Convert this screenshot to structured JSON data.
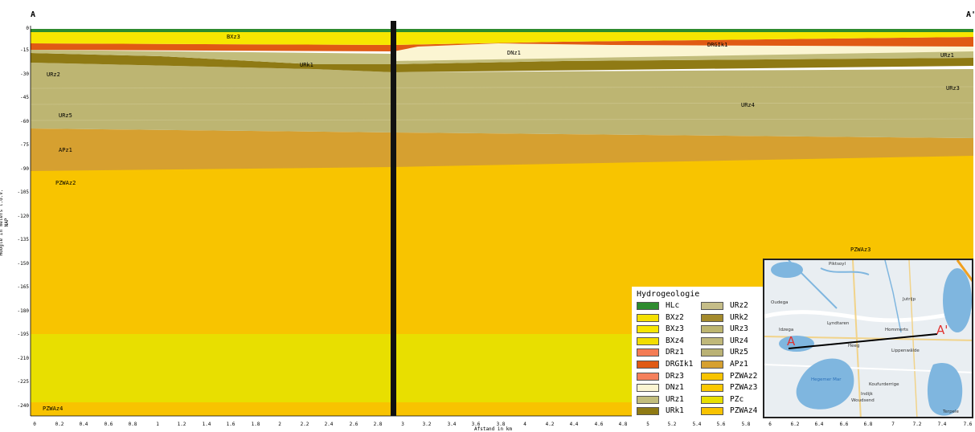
{
  "section": {
    "start_label": "A",
    "end_label": "A'"
  },
  "axes": {
    "y_label": "Hoogte in meters t.o.v. NAP",
    "y_ticks": [
      "0",
      "-15",
      "-30",
      "-45",
      "-60",
      "-75",
      "-90",
      "-105",
      "-120",
      "-135",
      "-150",
      "-165",
      "-180",
      "-195",
      "-210",
      "-225",
      "-240"
    ],
    "x_label": "Afstand in km",
    "x_ticks": [
      "0",
      "0.2",
      "0.4",
      "0.6",
      "0.8",
      "1",
      "1.2",
      "1.4",
      "1.6",
      "1.8",
      "2",
      "2.2",
      "2.4",
      "2.6",
      "2.8",
      "3",
      "3.2",
      "3.4",
      "3.6",
      "3.8",
      "4",
      "4.2",
      "4.4",
      "4.6",
      "4.8",
      "5",
      "5.2",
      "5.4",
      "5.6",
      "5.8",
      "6",
      "6.2",
      "6.4",
      "6.6",
      "6.8",
      "7",
      "7.2",
      "7.4",
      "7.6"
    ]
  },
  "unit_labels": {
    "BXz3": "BXz3",
    "DRGIk1": "DRGIk1",
    "DNz1": "DNz1",
    "URz1": "URz1",
    "URk1": "URk1",
    "URz2": "URz2",
    "URz3": "URz3",
    "URz4": "URz4",
    "URz5": "URz5",
    "APz1": "APz1",
    "PZWAz2": "PZWAz2",
    "PZWAz3": "PZWAz3",
    "PZWAz4": "PZWAz4"
  },
  "legend": {
    "title": "Hydrogeologie",
    "items": [
      {
        "label": "HLc",
        "color": "#2e8b2e"
      },
      {
        "label": "BXz2",
        "color": "#f5e000"
      },
      {
        "label": "BXz3",
        "color": "#f7e600"
      },
      {
        "label": "BXz4",
        "color": "#f2dd00"
      },
      {
        "label": "DRz1",
        "color": "#f47c55"
      },
      {
        "label": "DRGIk1",
        "color": "#e05a14"
      },
      {
        "label": "DRz3",
        "color": "#f5805c"
      },
      {
        "label": "DNz1",
        "color": "#fbf5d2"
      },
      {
        "label": "URz1",
        "color": "#c2bd7c"
      },
      {
        "label": "URk1",
        "color": "#8f7a14"
      },
      {
        "label": "URz2",
        "color": "#c5bd88"
      },
      {
        "label": "URk2",
        "color": "#a48a2c"
      },
      {
        "label": "URz3",
        "color": "#bdb570"
      },
      {
        "label": "URz4",
        "color": "#c0b87a"
      },
      {
        "label": "URz5",
        "color": "#bab275"
      },
      {
        "label": "APz1",
        "color": "#d6a030"
      },
      {
        "label": "PZWAz2",
        "color": "#f8c400"
      },
      {
        "label": "PZWAz3",
        "color": "#fbc800"
      },
      {
        "label": "PZc",
        "color": "#e8df00"
      },
      {
        "label": "PZWAz4",
        "color": "#f8c300"
      }
    ]
  },
  "inset_map": {
    "places": [
      "Piktsoyl",
      "Oudega",
      "Jutrijp",
      "Idzega",
      "Lyndtaren",
      "Hommerts",
      "Heeg",
      "Lippenwâlde",
      "Hegemer Mar",
      "Koufurderrige",
      "Indijk",
      "Woudsend",
      "Terpele"
    ],
    "marker_start": "A",
    "marker_end": "A'"
  }
}
